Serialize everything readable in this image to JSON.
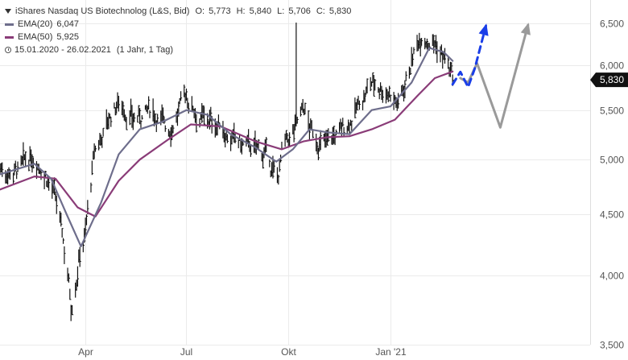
{
  "legend": {
    "instrument": "iShares Nasdaq US Biotechnolog (L&S, Bid)",
    "open_label": "O:",
    "open": "5,773",
    "high_label": "H:",
    "high": "5,840",
    "low_label": "L:",
    "low": "5,706",
    "close_label": "C:",
    "close": "5,830",
    "ema20_label": "EMA(20)",
    "ema20_value": "6,047",
    "ema50_label": "EMA(50)",
    "ema50_value": "5,925",
    "range": "15.01.2020 - 26.02.2021",
    "period": "(1 Jahr, 1 Tag)"
  },
  "colors": {
    "price": "#111111",
    "ema20": "#6e6e8c",
    "ema50": "#8a3c78",
    "grid": "#ebebeb",
    "axis_text": "#555555",
    "price_tag_bg": "#111111",
    "price_tag_text": "#ffffff",
    "forecast_blue": "#1a3ee8",
    "forecast_grey": "#9a9a9a"
  },
  "chart_data": {
    "type": "line",
    "y_axis": {
      "position": "right",
      "scale": "log",
      "ticks": [
        3500,
        4000,
        4500,
        5000,
        5500,
        6000,
        6500
      ],
      "tick_labels": [
        "3,500",
        "4,000",
        "4,500",
        "5,000",
        "5,500",
        "6,000",
        "6,500"
      ],
      "ylim": [
        3500,
        6800
      ]
    },
    "x_axis": {
      "xlim": [
        "2020-01-15",
        "2021-06-30"
      ],
      "ticks": [
        "2020-04-01",
        "2020-07-01",
        "2020-10-01",
        "2021-01-01"
      ],
      "tick_labels": [
        "Apr",
        "Jul",
        "Okt",
        "Jan '21"
      ]
    },
    "grid": true,
    "current_price_label": "5,830",
    "series": [
      {
        "name": "iShares Nasdaq US Biotechnolog (L&S, Bid)",
        "style": "daily high-low bars",
        "x": [
          "2020-01-15",
          "2020-02-01",
          "2020-02-15",
          "2020-02-24",
          "2020-03-03",
          "2020-03-09",
          "2020-03-16",
          "2020-03-19",
          "2020-03-23",
          "2020-03-27",
          "2020-04-01",
          "2020-04-09",
          "2020-04-20",
          "2020-05-01",
          "2020-05-15",
          "2020-06-01",
          "2020-06-15",
          "2020-07-01",
          "2020-07-15",
          "2020-08-01",
          "2020-08-15",
          "2020-09-01",
          "2020-09-10",
          "2020-09-21",
          "2020-09-25",
          "2020-10-05",
          "2020-10-15",
          "2020-10-22",
          "2020-11-01",
          "2020-11-09",
          "2020-11-20",
          "2020-12-01",
          "2020-12-15",
          "2021-01-01",
          "2021-01-08",
          "2021-01-20",
          "2021-01-29",
          "2021-02-08",
          "2021-02-18",
          "2021-02-26"
        ],
        "values": [
          4920,
          4880,
          5060,
          4900,
          4700,
          4430,
          4040,
          3780,
          3960,
          4200,
          4350,
          5050,
          5350,
          5600,
          5400,
          5500,
          5300,
          5650,
          5400,
          5350,
          5150,
          5100,
          5050,
          4800,
          5050,
          5250,
          5500,
          5250,
          5150,
          5200,
          5300,
          5500,
          5800,
          5700,
          5550,
          6050,
          6400,
          6300,
          6100,
          5830
        ]
      },
      {
        "name": "EMA(20)",
        "x": [
          "2020-01-15",
          "2020-02-15",
          "2020-03-01",
          "2020-03-15",
          "2020-03-28",
          "2020-04-15",
          "2020-05-01",
          "2020-05-20",
          "2020-06-10",
          "2020-07-01",
          "2020-07-20",
          "2020-08-10",
          "2020-09-01",
          "2020-09-20",
          "2020-10-05",
          "2020-10-20",
          "2020-11-05",
          "2020-11-25",
          "2020-12-15",
          "2021-01-01",
          "2021-01-20",
          "2021-02-05",
          "2021-02-18",
          "2021-02-26"
        ],
        "values": [
          4860,
          4960,
          4820,
          4500,
          4230,
          4600,
          5050,
          5300,
          5380,
          5500,
          5450,
          5250,
          5120,
          4980,
          5100,
          5300,
          5270,
          5250,
          5500,
          5540,
          5800,
          6200,
          6150,
          6047
        ]
      },
      {
        "name": "EMA(50)",
        "x": [
          "2020-01-15",
          "2020-02-15",
          "2020-03-05",
          "2020-03-25",
          "2020-04-10",
          "2020-05-01",
          "2020-05-20",
          "2020-06-15",
          "2020-07-05",
          "2020-08-01",
          "2020-09-01",
          "2020-09-25",
          "2020-10-15",
          "2020-11-05",
          "2020-11-25",
          "2020-12-15",
          "2021-01-05",
          "2021-01-25",
          "2021-02-10",
          "2021-02-26"
        ],
        "values": [
          4720,
          4840,
          4820,
          4560,
          4480,
          4800,
          5000,
          5200,
          5350,
          5330,
          5180,
          5100,
          5180,
          5220,
          5230,
          5300,
          5400,
          5650,
          5850,
          5925
        ]
      },
      {
        "name": "forecast-blue",
        "style": "dashed arrow",
        "x": [
          "2021-02-26",
          "2021-03-05",
          "2021-03-12",
          "2021-03-18",
          "2021-03-28"
        ],
        "values": [
          5780,
          5920,
          5750,
          5960,
          6470
        ]
      },
      {
        "name": "forecast-grey",
        "style": "solid arrow",
        "x": [
          "2021-03-05",
          "2021-03-12",
          "2021-03-20",
          "2021-04-10",
          "2021-05-05"
        ],
        "values": [
          5850,
          5800,
          6020,
          5320,
          6480
        ]
      }
    ]
  }
}
